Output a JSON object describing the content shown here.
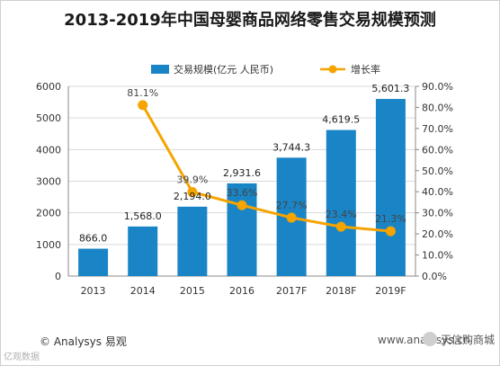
{
  "title": "2013-2019年中国母婴商品网络零售交易规模预测",
  "footer": {
    "source": "© Analysys 易观",
    "url": "www.analysys.cn",
    "badge": "天信购商城",
    "mark": "亿观数据"
  },
  "chart_data": {
    "type": "bar",
    "categories": [
      "2013",
      "2014",
      "2015",
      "2016",
      "2017F",
      "2018F",
      "2019F"
    ],
    "series": [
      {
        "name": "交易规模(亿元 人民币)",
        "type": "bar",
        "axis": "left",
        "values": [
          866.0,
          1568.0,
          2194.0,
          2931.6,
          3744.3,
          4619.5,
          5601.3
        ],
        "labels": [
          "866.0",
          "1,568.0",
          "2,194.0",
          "2,931.6",
          "3,744.3",
          "4,619.5",
          "5,601.3"
        ]
      },
      {
        "name": "增长率",
        "type": "line",
        "axis": "right",
        "values": [
          null,
          81.1,
          39.9,
          33.6,
          27.7,
          23.4,
          21.3
        ],
        "labels": [
          "",
          "81.1%",
          "39.9%",
          "33.6%",
          "27.7%",
          "23.4%",
          "21.3%"
        ]
      }
    ],
    "y_left": {
      "ylim": [
        0,
        6000
      ],
      "ticks": [
        "0",
        "1000",
        "2000",
        "3000",
        "4000",
        "5000",
        "6000"
      ]
    },
    "y_right": {
      "ylim": [
        0,
        90
      ],
      "ticks": [
        "0.0%",
        "10.0%",
        "20.0%",
        "30.0%",
        "40.0%",
        "50.0%",
        "60.0%",
        "70.0%",
        "80.0%",
        "90.0%"
      ]
    },
    "legend_position": "top",
    "colors": {
      "bar": "#1a85c6",
      "line": "#f5a400",
      "grid": "#d9d9d9"
    }
  }
}
